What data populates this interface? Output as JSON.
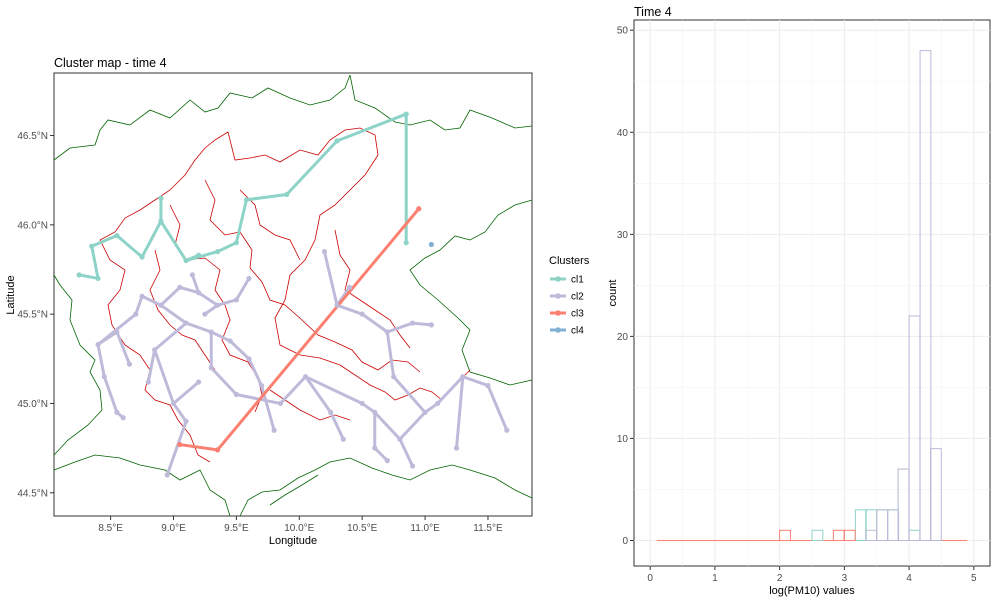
{
  "chart_data": [
    {
      "type": "map",
      "title": "Cluster map - time 4",
      "xlabel": "Longitude",
      "ylabel": "Latitude",
      "xlim": [
        8.05,
        11.85
      ],
      "ylim": [
        44.37,
        46.85
      ],
      "x_ticks": [
        8.5,
        9.0,
        9.5,
        10.0,
        10.5,
        11.0,
        11.5
      ],
      "x_tick_labels": [
        "8.5°E",
        "9.0°E",
        "9.5°E",
        "10.0°E",
        "10.5°E",
        "11.0°E",
        "11.5°E"
      ],
      "y_ticks": [
        44.5,
        45.0,
        45.5,
        46.0,
        46.5
      ],
      "y_tick_labels": [
        "44.5°N",
        "45.0°N",
        "45.5°N",
        "46.0°N",
        "46.5°N"
      ],
      "grid": false,
      "legend": {
        "title": "Clusters",
        "position": "right",
        "entries": [
          {
            "label": "cl1",
            "color": "#8dd3c7"
          },
          {
            "label": "cl2",
            "color": "#bebada"
          },
          {
            "label": "cl3",
            "color": "#fb8072"
          },
          {
            "label": "cl4",
            "color": "#80b1d3"
          }
        ]
      },
      "boundary_colors": {
        "outer": "#006400",
        "inner": "#cc0000"
      },
      "clusters": [
        {
          "name": "cl1",
          "color": "#8dd3c7",
          "points": [
            [
              8.25,
              45.72
            ],
            [
              8.4,
              45.7
            ],
            [
              8.35,
              45.88
            ],
            [
              8.55,
              45.94
            ],
            [
              8.75,
              45.82
            ],
            [
              8.9,
              46.02
            ],
            [
              9.1,
              45.8
            ],
            [
              9.35,
              45.85
            ],
            [
              9.5,
              45.9
            ],
            [
              9.58,
              46.14
            ],
            [
              9.9,
              46.17
            ],
            [
              10.3,
              46.47
            ],
            [
              10.85,
              46.62
            ],
            [
              10.85,
              45.9
            ],
            [
              8.9,
              46.15
            ],
            [
              9.2,
              45.83
            ]
          ],
          "edges": [
            [
              0,
              1
            ],
            [
              1,
              2
            ],
            [
              2,
              3
            ],
            [
              3,
              4
            ],
            [
              4,
              5
            ],
            [
              5,
              6
            ],
            [
              6,
              7
            ],
            [
              7,
              8
            ],
            [
              8,
              9
            ],
            [
              9,
              10
            ],
            [
              10,
              11
            ],
            [
              11,
              12
            ],
            [
              12,
              13
            ],
            [
              5,
              14
            ],
            [
              6,
              15
            ]
          ]
        },
        {
          "name": "cl2",
          "color": "#bebada",
          "points": [
            [
              8.4,
              45.33
            ],
            [
              8.55,
              45.4
            ],
            [
              8.65,
              45.22
            ],
            [
              8.75,
              45.6
            ],
            [
              8.9,
              45.55
            ],
            [
              9.05,
              45.65
            ],
            [
              9.2,
              45.62
            ],
            [
              9.35,
              45.55
            ],
            [
              9.5,
              45.58
            ],
            [
              9.6,
              45.7
            ],
            [
              9.1,
              45.45
            ],
            [
              8.85,
              45.3
            ],
            [
              8.7,
              45.5
            ],
            [
              9.3,
              45.4
            ],
            [
              9.45,
              45.35
            ],
            [
              9.6,
              45.25
            ],
            [
              9.7,
              45.1
            ],
            [
              9.8,
              44.85
            ],
            [
              8.45,
              45.15
            ],
            [
              8.55,
              44.95
            ],
            [
              8.6,
              44.92
            ],
            [
              9.0,
              45.0
            ],
            [
              9.1,
              44.9
            ],
            [
              9.2,
              45.12
            ],
            [
              8.95,
              44.6
            ],
            [
              9.3,
              45.2
            ],
            [
              9.5,
              45.05
            ],
            [
              9.85,
              45.0
            ],
            [
              10.05,
              45.15
            ],
            [
              10.25,
              44.95
            ],
            [
              10.35,
              44.8
            ],
            [
              10.5,
              45.0
            ],
            [
              10.6,
              44.95
            ],
            [
              10.8,
              44.8
            ],
            [
              10.9,
              44.65
            ],
            [
              11.0,
              44.95
            ],
            [
              11.1,
              45.0
            ],
            [
              11.3,
              45.15
            ],
            [
              11.5,
              45.1
            ],
            [
              11.65,
              44.85
            ],
            [
              11.25,
              44.75
            ],
            [
              10.75,
              45.15
            ],
            [
              10.7,
              45.4
            ],
            [
              10.9,
              45.45
            ],
            [
              11.05,
              45.44
            ],
            [
              10.5,
              45.5
            ],
            [
              10.3,
              45.55
            ],
            [
              10.2,
              45.85
            ],
            [
              10.4,
              45.65
            ],
            [
              10.6,
              44.75
            ],
            [
              9.15,
              45.72
            ],
            [
              9.25,
              45.5
            ],
            [
              8.8,
              45.12
            ],
            [
              10.7,
              44.68
            ]
          ],
          "edges": [
            [
              0,
              1
            ],
            [
              1,
              2
            ],
            [
              0,
              12
            ],
            [
              12,
              3
            ],
            [
              3,
              4
            ],
            [
              4,
              5
            ],
            [
              5,
              6
            ],
            [
              6,
              7
            ],
            [
              7,
              8
            ],
            [
              8,
              9
            ],
            [
              4,
              10
            ],
            [
              10,
              11
            ],
            [
              11,
              52
            ],
            [
              10,
              13
            ],
            [
              13,
              14
            ],
            [
              14,
              15
            ],
            [
              15,
              16
            ],
            [
              16,
              17
            ],
            [
              0,
              18
            ],
            [
              18,
              19
            ],
            [
              19,
              20
            ],
            [
              11,
              21
            ],
            [
              21,
              22
            ],
            [
              22,
              24
            ],
            [
              21,
              23
            ],
            [
              13,
              25
            ],
            [
              25,
              26
            ],
            [
              26,
              27
            ],
            [
              27,
              28
            ],
            [
              28,
              29
            ],
            [
              29,
              30
            ],
            [
              28,
              31
            ],
            [
              31,
              32
            ],
            [
              32,
              33
            ],
            [
              33,
              34
            ],
            [
              33,
              35
            ],
            [
              35,
              36
            ],
            [
              36,
              37
            ],
            [
              37,
              38
            ],
            [
              38,
              39
            ],
            [
              37,
              40
            ],
            [
              35,
              41
            ],
            [
              41,
              42
            ],
            [
              42,
              43
            ],
            [
              43,
              44
            ],
            [
              42,
              45
            ],
            [
              45,
              46
            ],
            [
              46,
              47
            ],
            [
              46,
              48
            ],
            [
              32,
              49
            ],
            [
              49,
              53
            ],
            [
              6,
              50
            ],
            [
              7,
              51
            ]
          ]
        },
        {
          "name": "cl3",
          "color": "#fb8072",
          "points": [
            [
              9.05,
              44.77
            ],
            [
              9.35,
              44.74
            ],
            [
              10.95,
              46.09
            ]
          ],
          "edges": [
            [
              0,
              1
            ],
            [
              1,
              2
            ]
          ]
        },
        {
          "name": "cl4",
          "color": "#80b1d3",
          "points": [
            [
              11.05,
              45.89
            ]
          ],
          "edges": []
        }
      ]
    },
    {
      "type": "histogram",
      "title": "Time 4",
      "xlabel": "log(PM10) values",
      "ylabel": "count",
      "xlim": [
        -0.25,
        5.25
      ],
      "ylim": [
        -2.5,
        51
      ],
      "x_ticks": [
        0,
        1,
        2,
        3,
        4,
        5
      ],
      "x_tick_labels": [
        "0",
        "1",
        "2",
        "3",
        "4",
        "5"
      ],
      "y_ticks": [
        0,
        10,
        20,
        30,
        40,
        50
      ],
      "y_tick_labels": [
        "0",
        "10",
        "20",
        "30",
        "40",
        "50"
      ],
      "grid": true,
      "bin_width": 0.167,
      "baseline_range": [
        0.1,
        4.9
      ],
      "series": [
        {
          "name": "cl1",
          "color": "#8dd3c7",
          "bins": [
            [
              2.5,
              1
            ],
            [
              3.17,
              3
            ],
            [
              3.33,
              3
            ],
            [
              3.5,
              3
            ],
            [
              3.67,
              3
            ],
            [
              3.83,
              7
            ],
            [
              4.0,
              1
            ]
          ]
        },
        {
          "name": "cl2",
          "color": "#bebada",
          "bins": [
            [
              3.33,
              1
            ],
            [
              3.5,
              3
            ],
            [
              3.67,
              3
            ],
            [
              3.83,
              7
            ],
            [
              4.0,
              22
            ],
            [
              4.17,
              48
            ],
            [
              4.33,
              9
            ]
          ]
        },
        {
          "name": "cl3",
          "color": "#fb8072",
          "bins": [
            [
              2.0,
              1
            ],
            [
              2.83,
              1
            ],
            [
              3.0,
              1
            ]
          ]
        }
      ]
    }
  ]
}
